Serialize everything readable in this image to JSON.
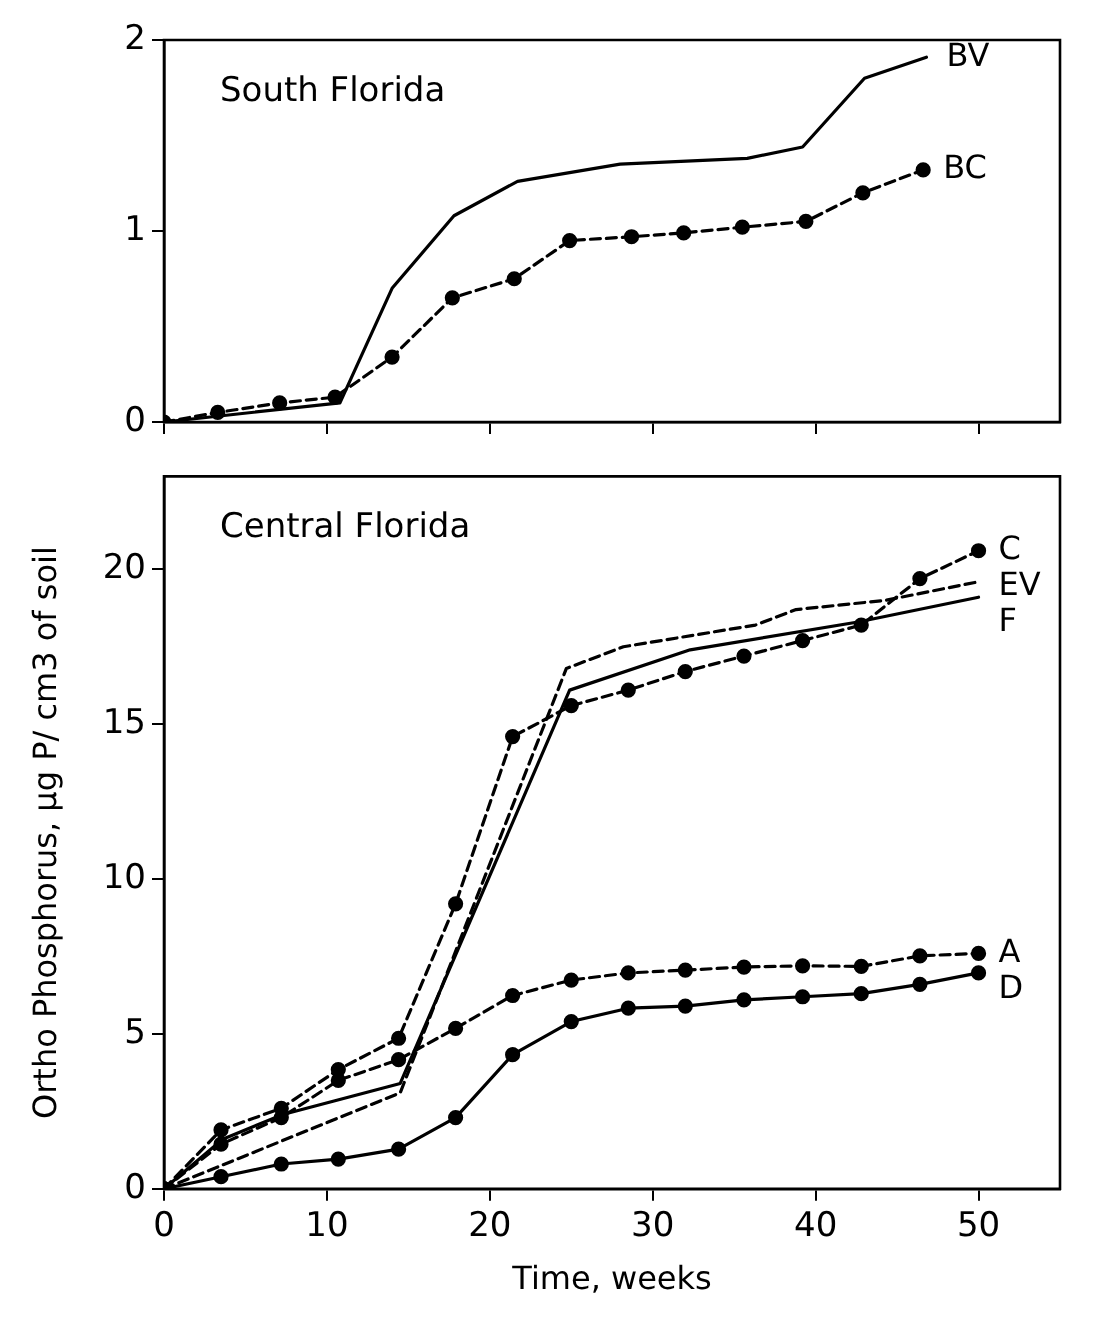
{
  "chart_data": [
    {
      "type": "line",
      "title": "South Florida",
      "xlim": [
        0,
        55
      ],
      "xticks": [
        0,
        10,
        20,
        30,
        40,
        50
      ],
      "ylim": [
        0,
        2
      ],
      "yticks": [
        0,
        1,
        2
      ],
      "tick_labels": "y",
      "grid": false,
      "legend": false,
      "series": [
        {
          "name": "BV",
          "color": "#000000",
          "line_style": "solid",
          "marker": "none",
          "x": [
            0,
            10.8,
            14,
            17.8,
            21.7,
            28,
            35.8,
            39.2,
            43,
            46.8
          ],
          "values": [
            0,
            0.1,
            0.7,
            1.08,
            1.26,
            1.35,
            1.38,
            1.44,
            1.8,
            1.91
          ]
        },
        {
          "name": "BC",
          "color": "#000000",
          "line_style": "dashed",
          "marker": "circle",
          "x": [
            0,
            3.3,
            7.1,
            10.5,
            14,
            17.7,
            21.5,
            24.9,
            28.7,
            31.9,
            35.5,
            39.4,
            42.9,
            46.6
          ],
          "values": [
            0,
            0.05,
            0.1,
            0.13,
            0.34,
            0.65,
            0.75,
            0.95,
            0.97,
            0.99,
            1.02,
            1.05,
            1.2,
            1.32
          ]
        }
      ]
    },
    {
      "type": "line",
      "title": "Central Florida",
      "xlabel": "Time, weeks",
      "ylabel": "Ortho Phosphorus, μg P/ cm3 of soil",
      "xlim": [
        0,
        55
      ],
      "xticks": [
        0,
        10,
        20,
        30,
        40,
        50
      ],
      "ylim": [
        0,
        23
      ],
      "yticks": [
        0,
        5,
        10,
        15,
        20
      ],
      "grid": false,
      "legend": false,
      "series": [
        {
          "name": "EV",
          "color": "#000000",
          "line_style": "dashed",
          "marker": "none",
          "x": [
            0,
            14.5,
            24.7,
            28.2,
            36.3,
            38.8,
            44.3,
            50
          ],
          "values": [
            0,
            3.1,
            16.8,
            17.5,
            18.2,
            18.7,
            19.0,
            19.6
          ]
        },
        {
          "name": "F",
          "color": "#000000",
          "line_style": "solid",
          "marker": "none",
          "x": [
            0,
            3.6,
            7.3,
            14.5,
            24.9,
            32.3,
            42.6,
            50
          ],
          "values": [
            0,
            1.6,
            2.4,
            3.4,
            16.1,
            17.4,
            18.3,
            19.1
          ]
        },
        {
          "name": "C",
          "color": "#000000",
          "line_style": "dashed",
          "marker": "circle",
          "x": [
            0,
            3.5,
            7.2,
            10.7,
            14.4,
            17.9,
            21.4,
            25,
            28.5,
            32,
            35.6,
            39.2,
            42.8,
            46.4,
            50
          ],
          "values": [
            0,
            1.9,
            2.6,
            3.85,
            4.86,
            9.2,
            14.6,
            15.6,
            16.1,
            16.7,
            17.2,
            17.7,
            18.2,
            19.7,
            20.6
          ]
        },
        {
          "name": "A",
          "color": "#000000",
          "line_style": "dashed",
          "marker": "circle",
          "x": [
            0,
            3.5,
            7.2,
            10.7,
            14.4,
            17.9,
            21.4,
            25,
            28.5,
            32,
            35.6,
            39.2,
            42.8,
            46.4,
            50
          ],
          "values": [
            0,
            1.44,
            2.3,
            3.5,
            4.17,
            5.18,
            6.24,
            6.74,
            6.97,
            7.06,
            7.16,
            7.2,
            7.18,
            7.52,
            7.6
          ]
        },
        {
          "name": "D",
          "color": "#000000",
          "line_style": "solid",
          "marker": "circle",
          "x": [
            0,
            3.5,
            7.2,
            10.7,
            14.4,
            17.9,
            21.4,
            25,
            28.5,
            32,
            35.6,
            39.2,
            42.8,
            46.4,
            50
          ],
          "values": [
            0,
            0.39,
            0.8,
            0.96,
            1.28,
            2.3,
            4.33,
            5.4,
            5.83,
            5.9,
            6.1,
            6.2,
            6.3,
            6.6,
            6.97
          ]
        }
      ]
    }
  ]
}
